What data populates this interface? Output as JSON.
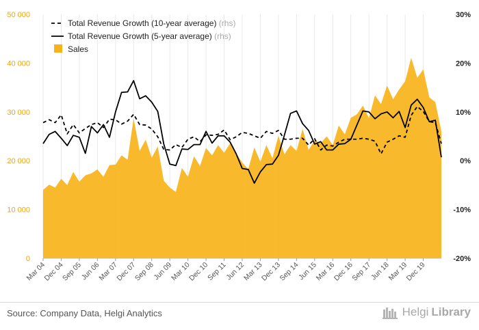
{
  "chart_data": {
    "type": "area+line",
    "title": "",
    "xlabel": "",
    "ylabel": "",
    "left_axis": {
      "range": [
        0,
        50000
      ],
      "ticks": [
        0,
        10000,
        20000,
        30000,
        40000,
        50000
      ],
      "tick_labels": [
        "0",
        "10 000",
        "20 000",
        "30 000",
        "40 000",
        "50 000"
      ]
    },
    "right_axis": {
      "range": [
        -20,
        30
      ],
      "ticks": [
        -20,
        -10,
        0,
        10,
        20,
        30
      ],
      "tick_labels": [
        "-20%",
        "-10%",
        "0%",
        "10%",
        "20%",
        "30%"
      ]
    },
    "x_tick_labels": [
      "Mar 04",
      "Dec 04",
      "Sep 05",
      "Jun 06",
      "Mar 07",
      "Dec 07",
      "Sep 08",
      "Jun 09",
      "Mar 10",
      "Dec 10",
      "Sep 11",
      "Jun 12",
      "Mar 13",
      "Dec 13",
      "Sep 14",
      "Jun 15",
      "Mar 16",
      "Dec 16",
      "Sep 17",
      "Jun 18",
      "Mar 19",
      "Dec 19"
    ],
    "legend_position": "top-left",
    "grid": "vertical",
    "series": [
      {
        "name": "Total Revenue Growth (10-year average)",
        "axis_note": "(rhs)",
        "style": "dashed",
        "color": "#000000",
        "values": [
          7.8,
          8.4,
          7.8,
          9.4,
          5.5,
          7.4,
          5.7,
          6.6,
          7.4,
          7.8,
          6.8,
          8.5,
          8.4,
          7.5,
          8.1,
          9.5,
          7.4,
          7.3,
          6.5,
          4.9,
          2.3,
          2.2,
          3.3,
          2.7,
          4.4,
          4.9,
          3.9,
          5.3,
          5.2,
          5.4,
          6.3,
          4.3,
          4.9,
          5.8,
          5.6,
          5.1,
          4.6,
          6.0,
          5.6,
          6.2,
          4.4,
          4.4,
          4.6,
          4.6,
          3.2,
          4.5,
          2.2,
          3.2,
          3.0,
          3.8,
          4.4,
          4.4,
          4.4,
          4.6,
          4.4,
          4.0,
          1.4,
          3.8,
          4.4,
          5.1,
          4.8,
          9.3,
          11.1,
          10.1,
          8.0,
          7.8,
          3.5
        ]
      },
      {
        "name": "Total Revenue Growth (5-year average)",
        "axis_note": "(rhs)",
        "style": "solid",
        "color": "#000000",
        "values": [
          3.5,
          5.4,
          6.0,
          4.6,
          3.1,
          5.2,
          4.8,
          1.5,
          7.0,
          5.7,
          7.4,
          4.8,
          10.0,
          14.0,
          14.1,
          16.4,
          12.7,
          13.3,
          12.0,
          10.1,
          3.4,
          -0.7,
          -1.0,
          2.4,
          2.3,
          3.3,
          3.3,
          6.0,
          3.6,
          5.1,
          5.1,
          3.8,
          1.4,
          -1.6,
          -1.8,
          -4.6,
          -2.3,
          -0.8,
          -0.7,
          1.1,
          5.3,
          9.7,
          10.2,
          7.6,
          6.2,
          3.4,
          3.9,
          2.2,
          2.2,
          3.4,
          3.5,
          4.4,
          7.3,
          10.2,
          10.0,
          8.6,
          9.6,
          10.0,
          8.8,
          10.1,
          6.8,
          11.4,
          12.6,
          10.9,
          8.0,
          8.3,
          0.7
        ]
      },
      {
        "name": "Sales",
        "style": "area",
        "color": "#f7b31a",
        "values": [
          14000,
          15100,
          14500,
          16300,
          15000,
          17700,
          15700,
          17000,
          17400,
          18200,
          16700,
          19100,
          19200,
          21100,
          20200,
          28700,
          22000,
          24300,
          20600,
          22900,
          15900,
          14500,
          13600,
          18500,
          16700,
          20900,
          18900,
          22600,
          21100,
          23200,
          21600,
          23600,
          21500,
          19600,
          18300,
          22700,
          19800,
          23200,
          20500,
          25100,
          21300,
          23200,
          22000,
          26500,
          22200,
          24200,
          23600,
          25000,
          23200,
          27200,
          25400,
          28800,
          29500,
          31300,
          28700,
          33400,
          31600,
          35400,
          32600,
          34600,
          36300,
          41100,
          37000,
          38700,
          33000,
          32000,
          26000
        ]
      }
    ]
  },
  "source": "Source: Company Data, Helgi Analytics",
  "brand": {
    "name_part1": "Helgi",
    "name_part2": "Library"
  }
}
